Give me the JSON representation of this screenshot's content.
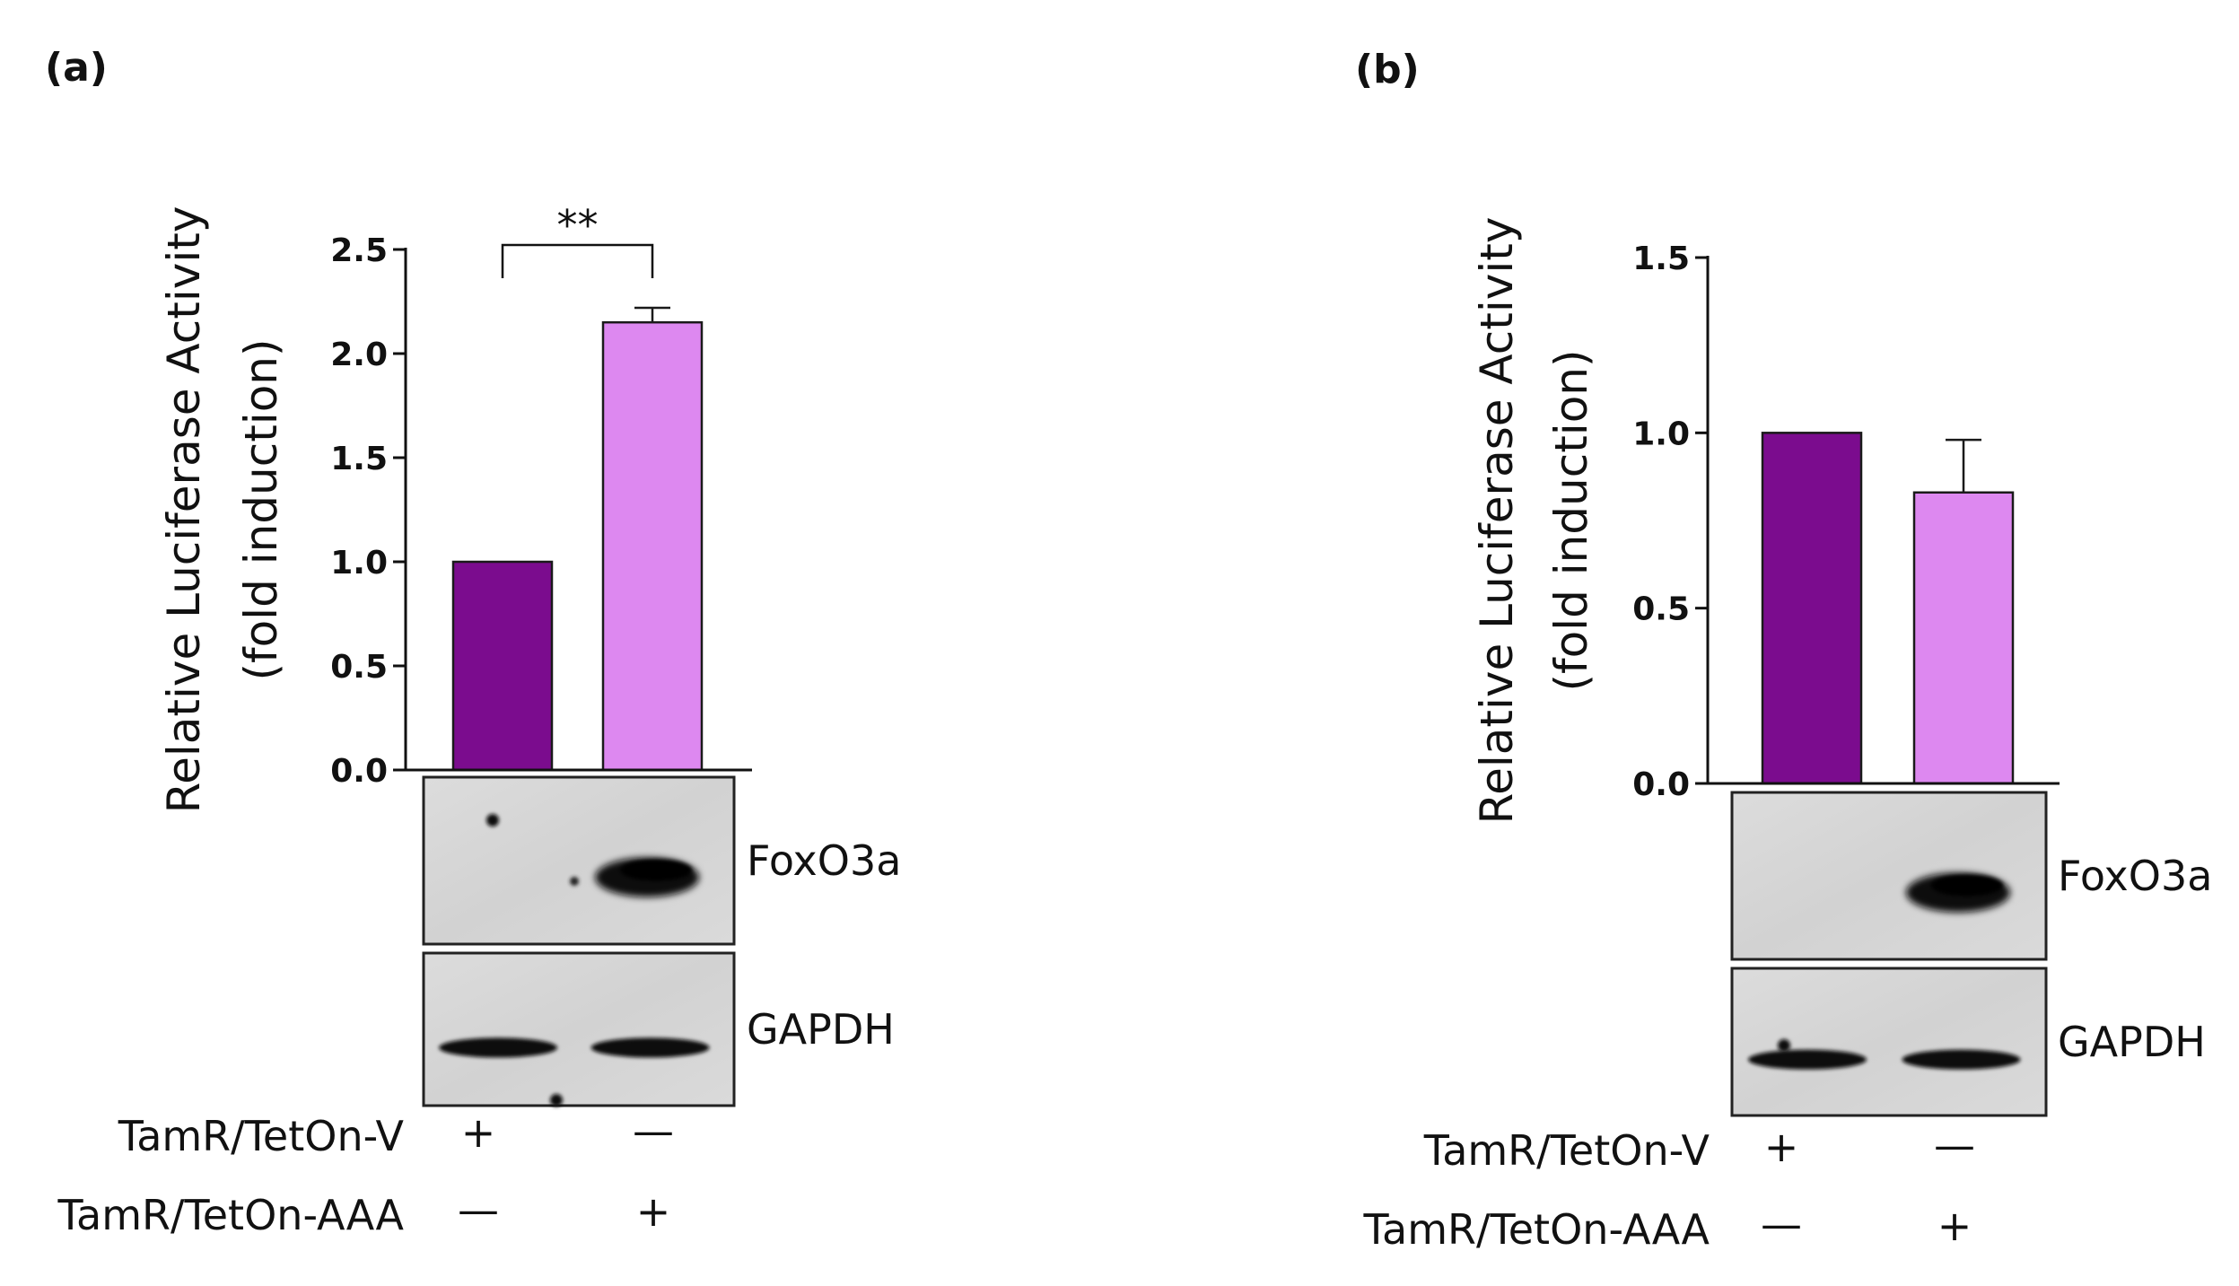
{
  "chart_data": [
    {
      "type": "bar",
      "panel": "(a)",
      "ylabel": [
        "Relative Luciferase Activity",
        "(fold induction)"
      ],
      "ylim": [
        0,
        2.5
      ],
      "yticks": [
        "0.0",
        "0.5",
        "1.0",
        "1.5",
        "2.0",
        "2.5"
      ],
      "ytick_values": [
        0,
        0.5,
        1.0,
        1.5,
        2.0,
        2.5
      ],
      "categories": [
        "TamR/TetOn-V",
        "TamR/TetOn-AAA"
      ],
      "values": [
        1.0,
        2.15
      ],
      "errors": [
        0,
        0.07
      ],
      "colors": [
        "#7B0C8E",
        "#DD88F0"
      ],
      "significance": "**",
      "blots": [
        "FoxO3a",
        "GAPDH"
      ],
      "conditions": [
        {
          "label": "TamR/TetOn-V",
          "signs": [
            "+",
            "—"
          ]
        },
        {
          "label": "TamR/TetOn-AAA",
          "signs": [
            "—",
            "+"
          ]
        }
      ]
    },
    {
      "type": "bar",
      "panel": "(b)",
      "ylabel": [
        "Relative Luciferase Activity",
        "(fold induction)"
      ],
      "ylim": [
        0,
        1.5
      ],
      "yticks": [
        "0.0",
        "0.5",
        "1.0",
        "1.5"
      ],
      "ytick_values": [
        0,
        0.5,
        1.0,
        1.5
      ],
      "categories": [
        "TamR/TetOn-V",
        "TamR/TetOn-AAA"
      ],
      "values": [
        1.0,
        0.83
      ],
      "errors": [
        0,
        0.15
      ],
      "colors": [
        "#7B0C8E",
        "#DD88F0"
      ],
      "significance": "",
      "blots": [
        "FoxO3a",
        "GAPDH"
      ],
      "conditions": [
        {
          "label": "TamR/TetOn-V",
          "signs": [
            "+",
            "—"
          ]
        },
        {
          "label": "TamR/TetOn-AAA",
          "signs": [
            "—",
            "+"
          ]
        }
      ]
    }
  ]
}
